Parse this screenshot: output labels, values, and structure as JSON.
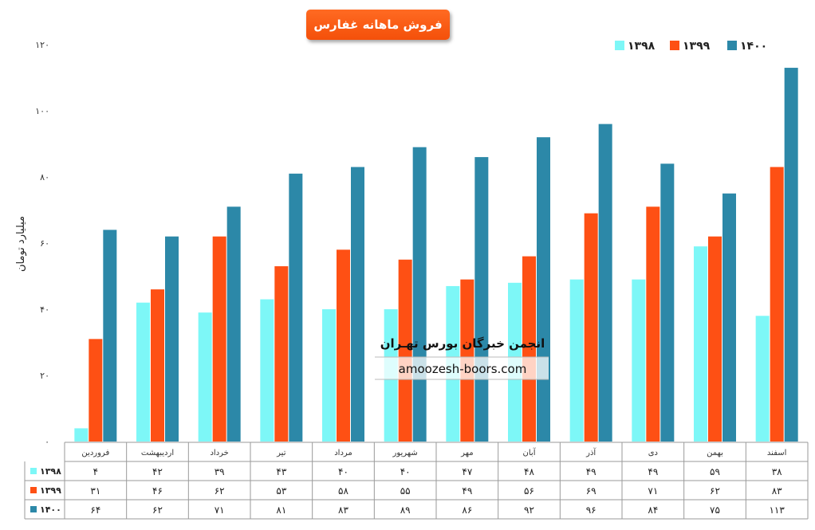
{
  "chart_data": {
    "type": "bar",
    "title": "فروش ماهانه غفارس",
    "ylabel": "میلیارد تومان",
    "xlabel": "",
    "ylim": [
      0,
      120
    ],
    "yticks": [
      0,
      20,
      40,
      60,
      80,
      100,
      120
    ],
    "ytick_labels": [
      "۰",
      "۲۰",
      "۴۰",
      "۶۰",
      "۸۰",
      "۱۰۰",
      "۱۲۰"
    ],
    "legend_position": "top-right",
    "grid": false,
    "categories": [
      "اسفند",
      "بهمن",
      "دی",
      "آذر",
      "آبان",
      "مهر",
      "شهریور",
      "مرداد",
      "تیر",
      "خرداد",
      "اردیبهشت",
      "فروردین"
    ],
    "category_order": "right-to-left",
    "series": [
      {
        "name": "۱۳۹۸",
        "color": "#7df7f7",
        "values": [
          38,
          59,
          49,
          49,
          48,
          47,
          40,
          40,
          43,
          39,
          42,
          4
        ],
        "labels": [
          "۳۸",
          "۵۹",
          "۴۹",
          "۴۹",
          "۴۸",
          "۴۷",
          "۴۰",
          "۴۰",
          "۴۳",
          "۳۹",
          "۴۲",
          "۴"
        ]
      },
      {
        "name": "۱۳۹۹",
        "color": "#fe5014",
        "values": [
          83,
          62,
          71,
          69,
          56,
          49,
          55,
          58,
          53,
          62,
          46,
          31
        ],
        "labels": [
          "۸۳",
          "۶۲",
          "۷۱",
          "۶۹",
          "۵۶",
          "۴۹",
          "۵۵",
          "۵۸",
          "۵۳",
          "۶۲",
          "۴۶",
          "۳۱"
        ]
      },
      {
        "name": "۱۴۰۰",
        "color": "#2c88a8",
        "values": [
          113,
          75,
          84,
          96,
          92,
          86,
          89,
          83,
          81,
          71,
          62,
          64
        ],
        "labels": [
          "۱۱۳",
          "۷۵",
          "۸۴",
          "۹۶",
          "۹۲",
          "۸۶",
          "۸۹",
          "۸۳",
          "۸۱",
          "۷۱",
          "۶۲",
          "۶۴"
        ]
      }
    ],
    "watermark": {
      "line1": "انجمن خبرگان بورس تهـران",
      "line2": "amoozesh-boors.com"
    }
  }
}
